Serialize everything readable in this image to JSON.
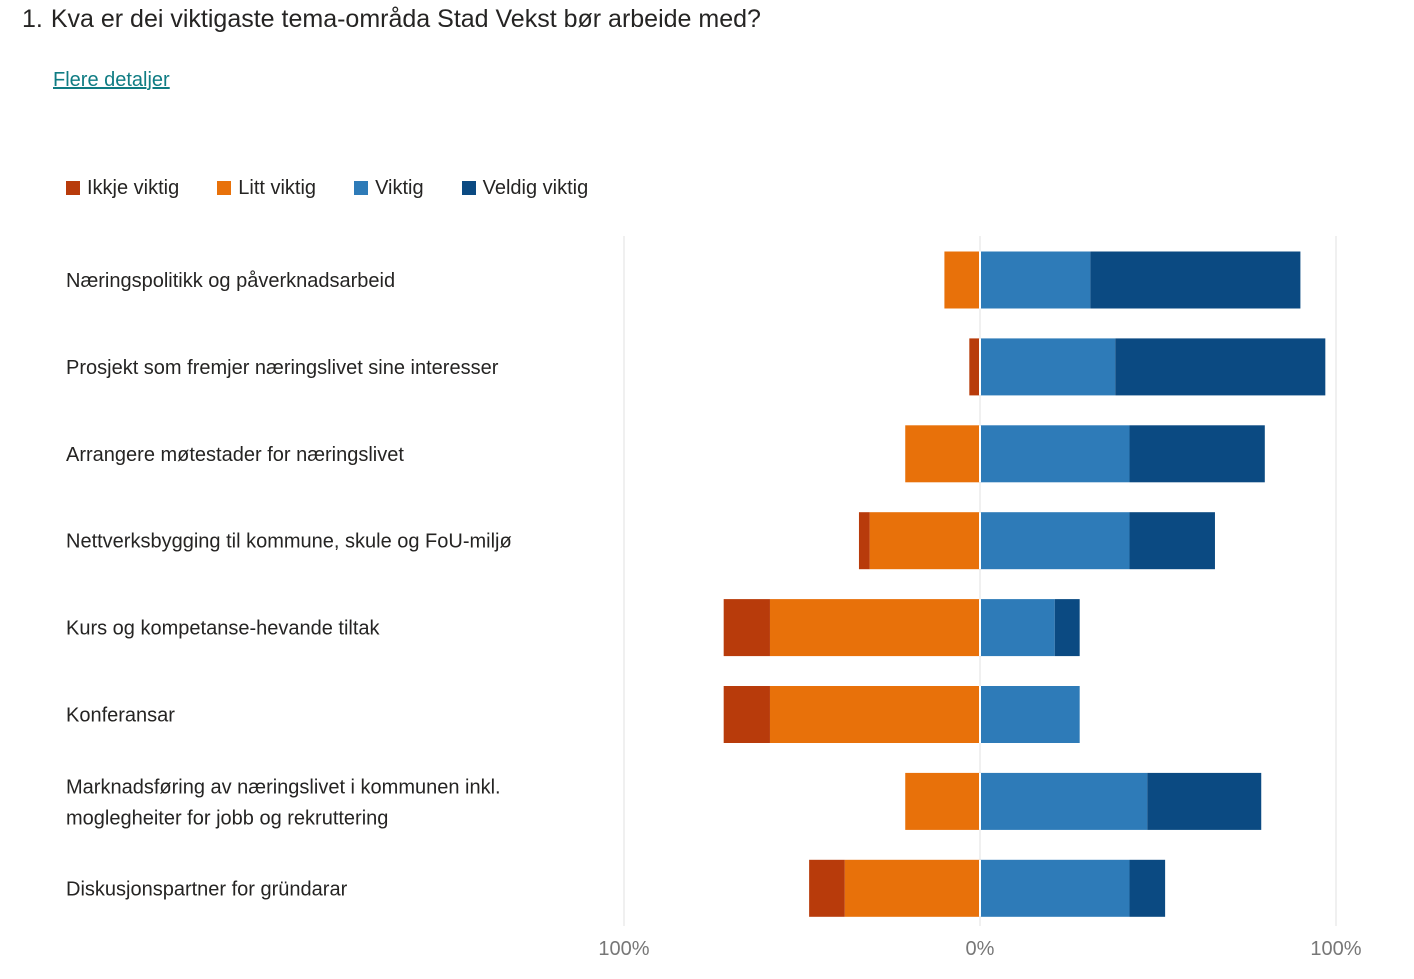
{
  "question": {
    "number": "1.",
    "text": "Kva er dei viktigaste tema-områda Stad Vekst bør arbeide med?"
  },
  "details_link": "Flere detaljer",
  "colors": {
    "ikkje_viktig": "#b83b0b",
    "litt_viktig": "#e8710a",
    "viktig": "#2e7bb8",
    "veldig_viktig": "#0b4a82",
    "gridline": "#e1e1e1",
    "text": "#252423",
    "axis_text": "#777777"
  },
  "chart_data": {
    "type": "bar",
    "orientation": "horizontal",
    "stacking": "diverging",
    "categories": [
      "Næringspolitikk og påverknadsarbeid",
      "Prosjekt som fremjer næringslivet sine interesser",
      "Arrangere møtestader for næringslivet",
      "Nettverksbygging til kommune, skule og FoU-miljø",
      "Kurs og kompetanse-hevande tiltak",
      "Konferansar",
      "Marknadsføring av næringslivet i kommunen inkl. moglegheiter for jobb og rekruttering",
      "Diskusjonspartner for gründarar"
    ],
    "series": [
      {
        "name": "Ikkje viktig",
        "side": "negative",
        "color_key": "ikkje_viktig",
        "values": [
          0,
          3,
          0,
          3,
          13,
          13,
          0,
          10
        ]
      },
      {
        "name": "Litt viktig",
        "side": "negative",
        "color_key": "litt_viktig",
        "values": [
          10,
          0,
          21,
          31,
          59,
          59,
          21,
          38
        ]
      },
      {
        "name": "Viktig",
        "side": "positive",
        "color_key": "viktig",
        "values": [
          31,
          38,
          42,
          42,
          21,
          28,
          47,
          42
        ]
      },
      {
        "name": "Veldig viktig",
        "side": "positive",
        "color_key": "veldig_viktig",
        "values": [
          59,
          59,
          38,
          24,
          7,
          0,
          32,
          10
        ]
      }
    ],
    "xlim": [
      -100,
      100
    ],
    "x_ticks": [
      "100%",
      "0%",
      "100%"
    ],
    "legend_position": "top",
    "grid": "vertical lines at -100%, 0%, 100%"
  }
}
